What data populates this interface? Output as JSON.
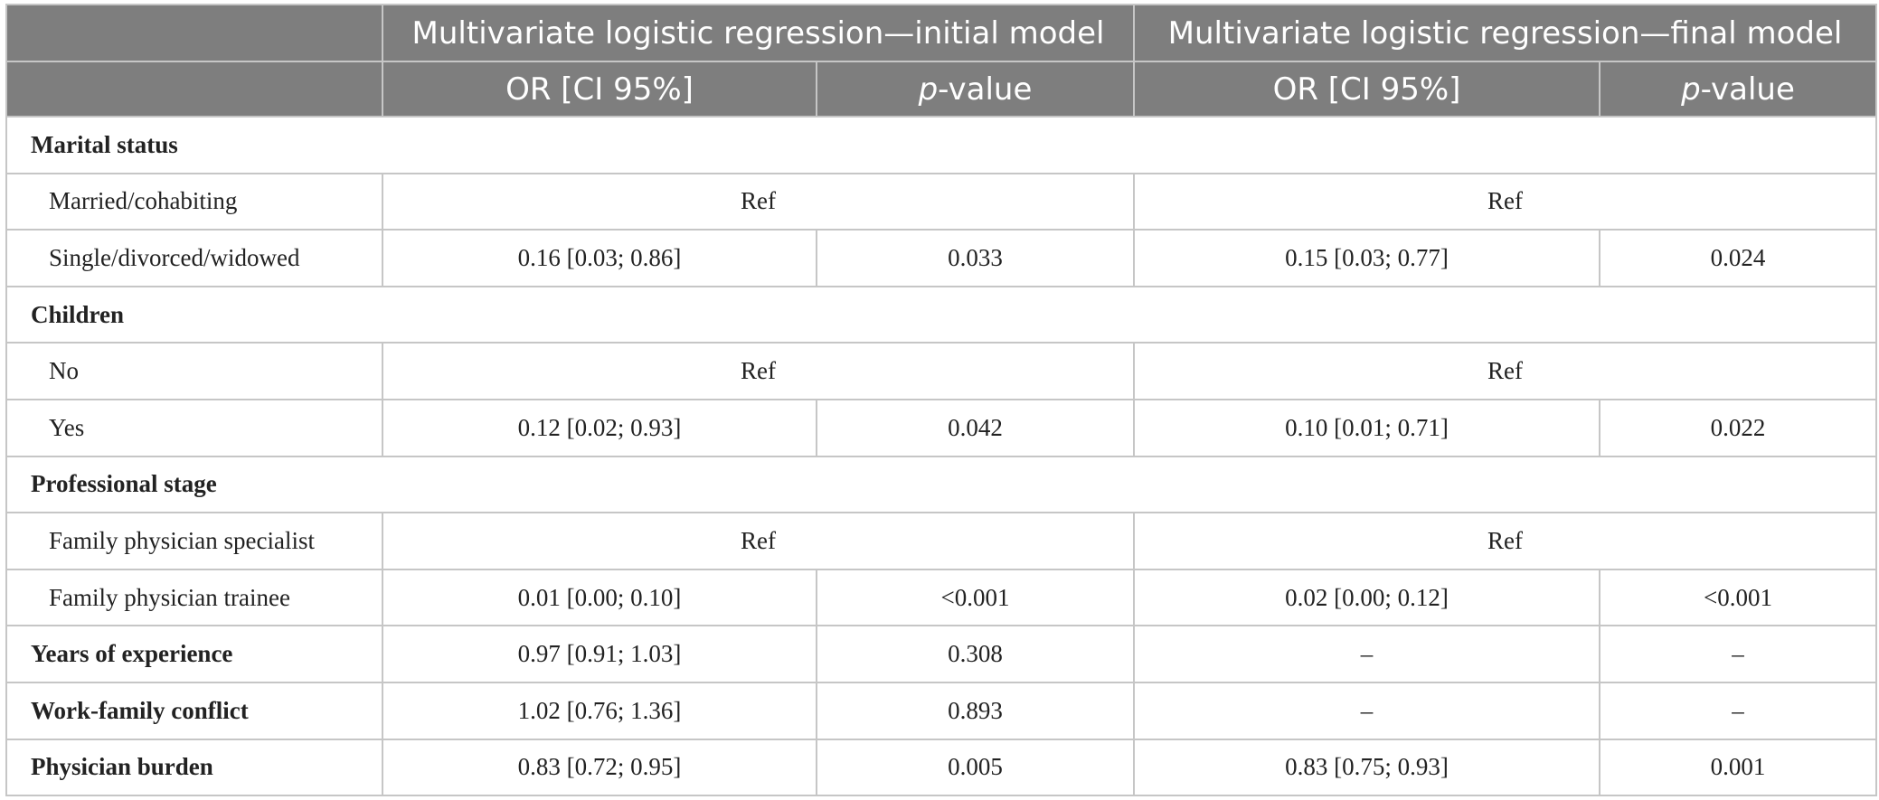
{
  "header": {
    "group_initial": "Multivariate logistic regression—initial model",
    "group_final": "Multivariate logistic regression—final model",
    "col_or": "OR [CI 95%]",
    "col_p_italic": "p",
    "col_p_rest": "-value"
  },
  "rows": [
    {
      "type": "section",
      "label": "Marital status"
    },
    {
      "type": "ref",
      "label": "Married/cohabiting",
      "initial_ref": "Ref",
      "final_ref": "Ref"
    },
    {
      "type": "data",
      "label": "Single/divorced/widowed",
      "initial_or": "0.16 [0.03; 0.86]",
      "initial_p": "0.033",
      "final_or": "0.15 [0.03; 0.77]",
      "final_p": "0.024"
    },
    {
      "type": "section",
      "label": "Children"
    },
    {
      "type": "ref",
      "label": "No",
      "initial_ref": "Ref",
      "final_ref": "Ref"
    },
    {
      "type": "data",
      "label": "Yes",
      "initial_or": "0.12 [0.02; 0.93]",
      "initial_p": "0.042",
      "final_or": "0.10 [0.01; 0.71]",
      "final_p": "0.022"
    },
    {
      "type": "section",
      "label": "Professional stage"
    },
    {
      "type": "ref",
      "label": "Family physician specialist",
      "initial_ref": "Ref",
      "final_ref": "Ref"
    },
    {
      "type": "data",
      "label": "Family physician trainee",
      "initial_or": "0.01 [0.00; 0.10]",
      "initial_p": "<0.001",
      "final_or": "0.02 [0.00; 0.12]",
      "final_p": "<0.001"
    },
    {
      "type": "main",
      "label": "Years of experience",
      "initial_or": "0.97 [0.91; 1.03]",
      "initial_p": "0.308",
      "final_or": "–",
      "final_p": "–"
    },
    {
      "type": "main",
      "label": "Work-family conflict",
      "initial_or": "1.02 [0.76; 1.36]",
      "initial_p": "0.893",
      "final_or": "–",
      "final_p": "–"
    },
    {
      "type": "main",
      "label": "Physician burden",
      "initial_or": "0.83 [0.72; 0.95]",
      "initial_p": "0.005",
      "final_or": "0.83 [0.75; 0.93]",
      "final_p": "0.001"
    }
  ]
}
